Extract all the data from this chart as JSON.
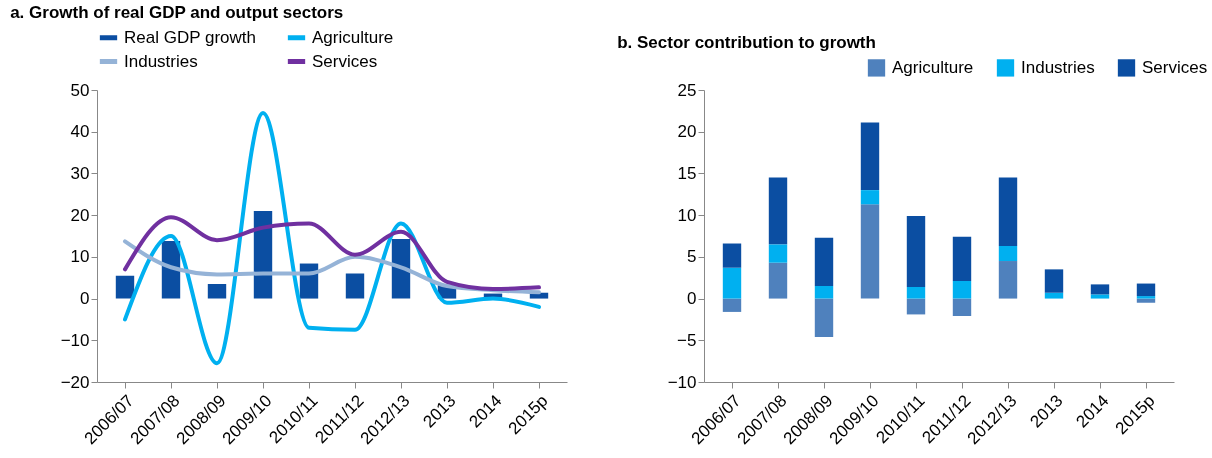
{
  "chart_data": [
    {
      "type": "bar",
      "title": "a. Growth of real GDP and output sectors",
      "categories": [
        "2006/07",
        "2007/08",
        "2008/09",
        "2009/10",
        "2010/11",
        "2011/12",
        "2012/13",
        "2013",
        "2014",
        "2015p"
      ],
      "series": [
        {
          "name": "Real GDP growth",
          "color": "#0b4ea2",
          "values": [
            5.5,
            13.8,
            3.5,
            21,
            8.4,
            6,
            14.3,
            3.2,
            1.2,
            1.4
          ]
        },
        {
          "name": "Agriculture",
          "type": "line",
          "color": "#00b0f0",
          "values": [
            -5,
            15,
            -15.5,
            44.5,
            -7,
            -7.5,
            18,
            -1,
            0,
            -2
          ]
        },
        {
          "name": "Industries",
          "type": "line",
          "color": "#95b3d7",
          "values": [
            13.7,
            7.5,
            5.8,
            6,
            6,
            10,
            7.5,
            3,
            2,
            1.5
          ]
        },
        {
          "name": "Services",
          "type": "line",
          "color": "#7030a0",
          "values": [
            7,
            19.5,
            14,
            17,
            18,
            10.5,
            16,
            4,
            2.3,
            2.7
          ]
        }
      ],
      "ylim": [
        -20,
        50
      ],
      "yticks": [
        -20,
        -10,
        0,
        10,
        20,
        30,
        40,
        50
      ],
      "grid": false,
      "legend": "top",
      "marker": "none"
    },
    {
      "type": "bar",
      "title": "b. Sector contribution to growth",
      "stacked": true,
      "categories": [
        "2006/07",
        "2007/08",
        "2008/09",
        "2009/10",
        "2010/11",
        "2011/12",
        "2012/13",
        "2013",
        "2014",
        "2015p"
      ],
      "series": [
        {
          "name": "Agriculture",
          "color": "#4f81bd",
          "values": [
            -1.6,
            4.3,
            -4.6,
            11.3,
            -1.9,
            -2.1,
            4.5,
            0,
            0,
            -0.5
          ]
        },
        {
          "name": "Industries",
          "color": "#00b0f0",
          "values": [
            3.7,
            2.2,
            1.5,
            1.7,
            1.4,
            2.1,
            1.8,
            0.7,
            0.5,
            0.3
          ]
        },
        {
          "name": "Services",
          "color": "#0b4ea2",
          "values": [
            2.9,
            8,
            5.8,
            8.1,
            8.5,
            5.3,
            8.2,
            2.8,
            1.2,
            1.5
          ]
        }
      ],
      "ylim": [
        -10,
        25
      ],
      "yticks": [
        -10,
        -5,
        0,
        5,
        10,
        15,
        20,
        25
      ],
      "grid": false,
      "legend": "top right"
    }
  ]
}
